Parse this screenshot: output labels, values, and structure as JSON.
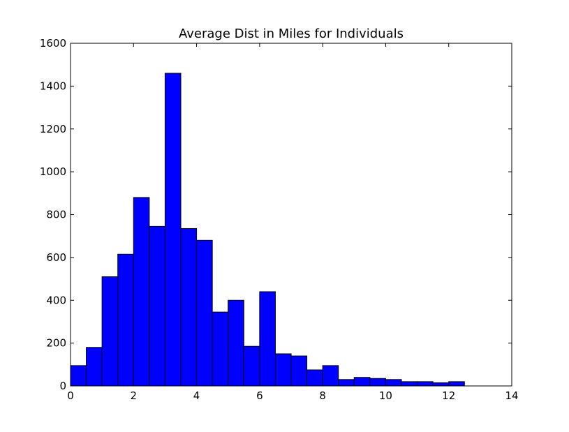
{
  "chart_data": {
    "type": "bar",
    "title": "Average Dist in Miles for Individuals",
    "xlabel": "",
    "ylabel": "",
    "xlim": [
      0,
      14
    ],
    "ylim": [
      0,
      1600
    ],
    "bin_width": 0.5,
    "bin_start": 0,
    "values": [
      95,
      180,
      510,
      615,
      880,
      745,
      1460,
      735,
      680,
      345,
      400,
      185,
      440,
      150,
      140,
      75,
      95,
      30,
      40,
      35,
      30,
      20,
      20,
      15,
      20
    ],
    "x_ticks": [
      "0",
      "2",
      "4",
      "6",
      "8",
      "10",
      "12",
      "14"
    ],
    "y_ticks": [
      "0",
      "200",
      "400",
      "600",
      "800",
      "1000",
      "1200",
      "1400",
      "1600"
    ],
    "grid": false,
    "legend": "none",
    "colors": {
      "bar_fill": "#0000ff",
      "bar_stroke": "#000000",
      "axis": "#000000",
      "background": "#ffffff"
    }
  }
}
